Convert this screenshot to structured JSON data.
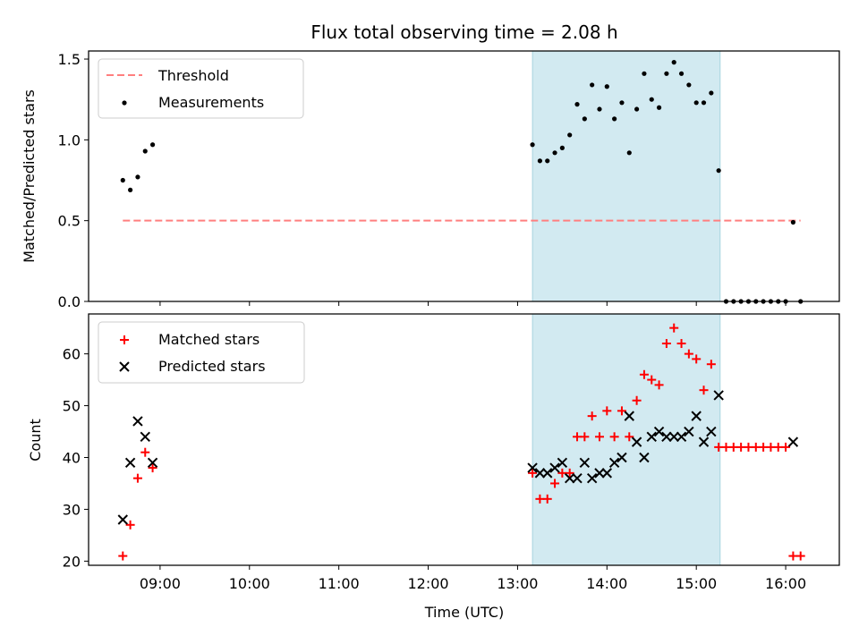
{
  "chart_data": [
    {
      "type": "scatter",
      "title": "Flux total observing time = 2.08 h",
      "xlabel": "",
      "ylabel": "Matched/Predicted stars",
      "ylim": [
        0,
        1.55
      ],
      "yticks": [
        "0.0",
        "0.5",
        "1.0",
        "1.5"
      ],
      "ytick_values": [
        0,
        0.5,
        1.0,
        1.5
      ],
      "legend_position": "upper-left",
      "highlight_band": {
        "start": "13:10",
        "end": "15:16",
        "color": "#add8e6"
      },
      "threshold": {
        "name": "Threshold",
        "value": 0.5,
        "start": "08:35",
        "end": "16:10",
        "color": "#ff7f7f",
        "style": "dashed"
      },
      "series": [
        {
          "name": "Measurements",
          "color": "#000000",
          "marker": "dot",
          "x": [
            "08:35",
            "08:40",
            "08:45",
            "08:50",
            "08:55",
            "13:10",
            "13:15",
            "13:20",
            "13:25",
            "13:30",
            "13:35",
            "13:40",
            "13:45",
            "13:50",
            "13:55",
            "14:00",
            "14:05",
            "14:10",
            "14:15",
            "14:20",
            "14:25",
            "14:30",
            "14:35",
            "14:40",
            "14:45",
            "14:50",
            "14:55",
            "15:00",
            "15:05",
            "15:10",
            "15:15",
            "15:20",
            "15:25",
            "15:30",
            "15:35",
            "15:40",
            "15:45",
            "15:50",
            "15:55",
            "16:00",
            "16:05",
            "16:10"
          ],
          "y": [
            0.75,
            0.69,
            0.77,
            0.93,
            0.97,
            0.97,
            0.87,
            0.87,
            0.92,
            0.95,
            1.03,
            1.22,
            1.13,
            1.34,
            1.19,
            1.33,
            1.13,
            1.23,
            0.92,
            1.19,
            1.41,
            1.25,
            1.2,
            1.41,
            1.48,
            1.41,
            1.34,
            1.23,
            1.23,
            1.29,
            0.81,
            0.0,
            0.0,
            0.0,
            0.0,
            0.0,
            0.0,
            0.0,
            0.0,
            0.0,
            0.49,
            0.0
          ]
        }
      ]
    },
    {
      "type": "scatter",
      "title": "",
      "xlabel": "Time (UTC)",
      "ylabel": "Count",
      "ylim": [
        19.2,
        67.7
      ],
      "yticks": [
        "20",
        "30",
        "40",
        "50",
        "60"
      ],
      "ytick_values": [
        20,
        30,
        40,
        50,
        60
      ],
      "xlim": [
        "08:12",
        "16:36"
      ],
      "xticks": [
        "09:00",
        "10:00",
        "11:00",
        "12:00",
        "13:00",
        "14:00",
        "15:00",
        "16:00"
      ],
      "legend_position": "upper-left",
      "highlight_band": {
        "start": "13:10",
        "end": "15:16",
        "color": "#add8e6"
      },
      "series": [
        {
          "name": "Matched stars",
          "color": "#ff0000",
          "marker": "plus",
          "x": [
            "08:35",
            "08:40",
            "08:45",
            "08:50",
            "08:55",
            "13:10",
            "13:15",
            "13:20",
            "13:25",
            "13:30",
            "13:35",
            "13:40",
            "13:45",
            "13:50",
            "13:55",
            "14:00",
            "14:05",
            "14:10",
            "14:15",
            "14:20",
            "14:25",
            "14:30",
            "14:35",
            "14:40",
            "14:45",
            "14:50",
            "14:55",
            "15:00",
            "15:05",
            "15:10",
            "15:15",
            "15:20",
            "15:25",
            "15:30",
            "15:35",
            "15:40",
            "15:45",
            "15:50",
            "15:55",
            "16:00",
            "16:05",
            "16:10"
          ],
          "y": [
            21,
            27,
            36,
            41,
            38,
            37,
            32,
            32,
            35,
            37,
            37,
            44,
            44,
            48,
            44,
            49,
            44,
            49,
            44,
            51,
            56,
            55,
            54,
            62,
            65,
            62,
            60,
            59,
            53,
            58,
            42,
            42,
            42,
            42,
            42,
            42,
            42,
            42,
            42,
            42,
            21,
            21
          ]
        },
        {
          "name": "Predicted stars",
          "color": "#000000",
          "marker": "x",
          "x": [
            "08:35",
            "08:40",
            "08:45",
            "08:50",
            "08:55",
            "13:10",
            "13:15",
            "13:20",
            "13:25",
            "13:30",
            "13:35",
            "13:40",
            "13:45",
            "13:50",
            "13:55",
            "14:00",
            "14:05",
            "14:10",
            "14:15",
            "14:20",
            "14:25",
            "14:30",
            "14:35",
            "14:40",
            "14:45",
            "14:50",
            "14:55",
            "15:00",
            "15:05",
            "15:10",
            "15:15",
            "16:05"
          ],
          "y": [
            28,
            39,
            47,
            44,
            39,
            38,
            37,
            37,
            38,
            39,
            36,
            36,
            39,
            36,
            37,
            37,
            39,
            40,
            48,
            43,
            40,
            44,
            45,
            44,
            44,
            44,
            45,
            48,
            43,
            45,
            52,
            43
          ]
        }
      ]
    }
  ]
}
